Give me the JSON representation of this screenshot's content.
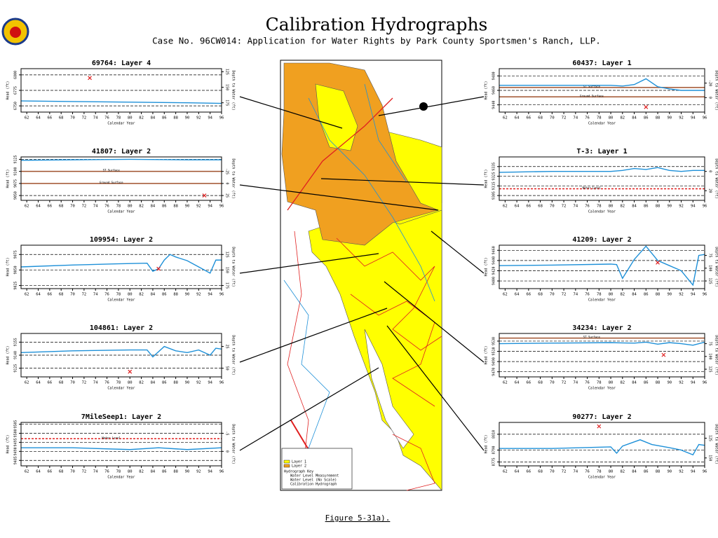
{
  "header": {
    "title": "Calibration Hydrographs",
    "subtitle": "Case No. 96CW014: Application for Water Rights by Park County Sportsmen's Ranch, LLP."
  },
  "footer": "Figure 5-31a).",
  "map": {
    "legend": [
      "Layer 1",
      "Layer 2",
      "Hydrograph Key",
      "Water Level Measurement",
      "Water Level (No Scale)",
      "Calibration Hydrograph"
    ]
  },
  "chart_data": [
    {
      "type": "line",
      "title": "69764: Layer 4",
      "x_label": "Calendar Year",
      "y_label": "Head (ft)",
      "y2_label": "Depth to Water (ft)",
      "xlim": [
        61,
        96
      ],
      "xticks": [
        62,
        64,
        66,
        68,
        70,
        72,
        74,
        76,
        78,
        80,
        82,
        84,
        86,
        88,
        90,
        92,
        94,
        96
      ],
      "ylim": [
        6740,
        6810
      ],
      "yticks": [
        6750,
        6775,
        6800
      ],
      "y2lim": [
        190,
        120
      ],
      "y2ticks": [
        125,
        150,
        175
      ],
      "grid": true,
      "series": [
        {
          "color": "#1e90d8",
          "x": [
            61,
            70,
            80,
            90,
            96
          ],
          "values": [
            6758,
            6757,
            6756,
            6755,
            6754
          ]
        }
      ],
      "measurements": {
        "color": "#e02020",
        "x": [
          73
        ],
        "y": [
          6795
        ]
      },
      "ref_lines": []
    },
    {
      "type": "line",
      "title": "41807: Layer 2",
      "x_label": "Calendar Year",
      "y_label": "Head (ft)",
      "y2_label": "Depth to Water (ft)",
      "xlim": [
        61,
        96
      ],
      "xticks": [
        62,
        64,
        66,
        68,
        70,
        72,
        74,
        76,
        78,
        80,
        82,
        84,
        86,
        88,
        90,
        92,
        94,
        96
      ],
      "ylim": [
        9040,
        9130
      ],
      "yticks": [
        9050,
        9075,
        9100,
        9125
      ],
      "y2lim": [
        35,
        -55
      ],
      "y2ticks": [
        -25,
        0,
        25
      ],
      "grid": true,
      "series": [
        {
          "color": "#1e90d8",
          "x": [
            61,
            70,
            80,
            90,
            96
          ],
          "values": [
            9123,
            9124,
            9125,
            9124,
            9124
          ]
        }
      ],
      "measurements": {
        "color": "#e02020",
        "x": [
          93
        ],
        "y": [
          9050
        ]
      },
      "ref_lines": [
        {
          "label": "ST Surface",
          "value": 9100,
          "color": "#a0522d"
        },
        {
          "label": "Ground Surface",
          "value": 9075,
          "color": "#a0522d"
        }
      ]
    },
    {
      "type": "line",
      "title": "109954: Layer 2",
      "x_label": "Calendar Year",
      "y_label": "Head (ft)",
      "y2_label": "Depth to Water (ft)",
      "xlim": [
        61,
        96
      ],
      "xticks": [
        62,
        64,
        66,
        68,
        70,
        72,
        74,
        76,
        78,
        80,
        82,
        84,
        86,
        88,
        90,
        92,
        94,
        96
      ],
      "ylim": [
        9020,
        9090
      ],
      "yticks": [
        9025,
        9050,
        9075
      ],
      "y2lim": [
        180,
        110
      ],
      "y2ticks": [
        125,
        150,
        175
      ],
      "grid": true,
      "series": [
        {
          "color": "#1e90d8",
          "x": [
            61,
            70,
            78,
            83,
            84,
            85,
            86,
            87,
            88,
            90,
            92,
            94,
            95,
            96
          ],
          "values": [
            9055,
            9058,
            9060,
            9061,
            9048,
            9052,
            9066,
            9075,
            9071,
            9065,
            9055,
            9045,
            9066,
            9066
          ]
        }
      ],
      "measurements": {
        "color": "#e02020",
        "x": [
          85
        ],
        "y": [
          9052
        ]
      },
      "ref_lines": []
    },
    {
      "type": "line",
      "title": "104861: Layer 2",
      "x_label": "Calendar Year",
      "y_label": "Head (ft)",
      "y2_label": "Depth to Water (ft)",
      "xlim": [
        61,
        96
      ],
      "xticks": [
        62,
        64,
        66,
        68,
        70,
        72,
        74,
        76,
        78,
        80,
        82,
        84,
        86,
        88,
        90,
        92,
        94,
        96
      ],
      "ylim": [
        9115,
        9165
      ],
      "yticks": [
        9125,
        9140,
        9155
      ],
      "y2lim": [
        60,
        10
      ],
      "y2ticks": [
        25,
        50
      ],
      "grid": true,
      "series": [
        {
          "color": "#1e90d8",
          "x": [
            61,
            70,
            80,
            83,
            84,
            86,
            88,
            90,
            92,
            94,
            95,
            96
          ],
          "values": [
            9143,
            9145,
            9146,
            9146,
            9138,
            9150,
            9145,
            9143,
            9146,
            9140,
            9148,
            9147
          ]
        }
      ],
      "measurements": {
        "color": "#e02020",
        "x": [
          80
        ],
        "y": [
          9121
        ]
      },
      "ref_lines": []
    },
    {
      "type": "line",
      "title": "7MileSeep1: Layer 2",
      "x_label": "Calendar Year",
      "y_label": "Head (ft)",
      "y2_label": "Depth to Water (ft)",
      "xlim": [
        61,
        96
      ],
      "xticks": [
        62,
        64,
        66,
        68,
        70,
        72,
        74,
        76,
        78,
        80,
        82,
        84,
        86,
        88,
        90,
        92,
        94,
        96
      ],
      "ylim": [
        9482,
        9506
      ],
      "yticks": [
        9485,
        9490,
        9495,
        9500,
        9505
      ],
      "y2lim": [
        4,
        -8
      ],
      "y2ticks": [
        -5,
        0
      ],
      "grid": true,
      "series": [
        {
          "color": "#1e90d8",
          "x": [
            61,
            70,
            80,
            85,
            90,
            96
          ],
          "values": [
            9492,
            9492,
            9491,
            9492,
            9491,
            9492
          ]
        }
      ],
      "measurements": {
        "color": "#e02020",
        "x": [],
        "y": []
      },
      "ref_lines": [
        {
          "label": "Water Level",
          "value": 9497,
          "color": "#e02020"
        }
      ]
    },
    {
      "type": "line",
      "title": "60437: Layer 1",
      "x_label": "Calendar Year",
      "y_label": "Head (ft)",
      "y2_label": "Depth to Water (ft)",
      "xlim": [
        61,
        96
      ],
      "xticks": [
        62,
        64,
        66,
        68,
        70,
        72,
        74,
        76,
        78,
        80,
        82,
        84,
        86,
        88,
        90,
        92,
        94,
        96
      ],
      "ylim": [
        9430,
        9490
      ],
      "yticks": [
        9440,
        9460,
        9480
      ],
      "y2lim": [
        20,
        -40
      ],
      "y2ticks": [
        -20,
        0
      ],
      "grid": true,
      "series": [
        {
          "color": "#1e90d8",
          "x": [
            61,
            70,
            80,
            82,
            84,
            86,
            88,
            90,
            92,
            96
          ],
          "values": [
            9467,
            9467,
            9467,
            9466,
            9468,
            9476,
            9465,
            9462,
            9460,
            9460
          ]
        }
      ],
      "measurements": {
        "color": "#e02020",
        "x": [
          86
        ],
        "y": [
          9437
        ]
      },
      "ref_lines": [
        {
          "label": "ST Surface",
          "value": 9464,
          "color": "#a0522d"
        },
        {
          "label": "Ground Surface",
          "value": 9451,
          "color": "#a0522d"
        }
      ]
    },
    {
      "type": "line",
      "title": "T-3: Layer 1",
      "x_label": "Calendar Year",
      "y_label": "Head (ft)",
      "y2_label": "Depth to Water (ft)",
      "xlim": [
        61,
        96
      ],
      "xticks": [
        62,
        64,
        66,
        68,
        70,
        72,
        74,
        76,
        78,
        80,
        82,
        84,
        86,
        88,
        90,
        92,
        94,
        96
      ],
      "ylim": [
        9300,
        9345
      ],
      "yticks": [
        9305,
        9315,
        9325,
        9335
      ],
      "y2lim": [
        30,
        -15
      ],
      "y2ticks": [
        0,
        20
      ],
      "grid": true,
      "series": [
        {
          "color": "#1e90d8",
          "x": [
            61,
            70,
            80,
            82,
            84,
            86,
            88,
            90,
            92,
            94,
            96
          ],
          "values": [
            9329,
            9330,
            9330,
            9331,
            9333,
            9332,
            9334,
            9331,
            9330,
            9331,
            9331
          ]
        }
      ],
      "measurements": {
        "color": "#e02020",
        "x": [],
        "y": []
      },
      "ref_lines": [
        {
          "label": "Water Level",
          "value": 9312,
          "color": "#e02020"
        }
      ]
    },
    {
      "type": "line",
      "title": "41209: Layer 2",
      "x_label": "Calendar Year",
      "y_label": "Head (ft)",
      "y2_label": "Depth to Water (ft)",
      "xlim": [
        61,
        96
      ],
      "xticks": [
        62,
        64,
        66,
        68,
        70,
        72,
        74,
        76,
        78,
        80,
        82,
        84,
        86,
        88,
        90,
        92,
        94,
        96
      ],
      "ylim": [
        9385,
        9470
      ],
      "yticks": [
        9400,
        9420,
        9440,
        9460
      ],
      "y2lim": [
        140,
        55
      ],
      "y2ticks": [
        75,
        100,
        125
      ],
      "grid": true,
      "series": [
        {
          "color": "#1e90d8",
          "x": [
            61,
            70,
            80,
            81,
            82,
            84,
            86,
            88,
            90,
            92,
            94,
            95,
            96
          ],
          "values": [
            9430,
            9431,
            9433,
            9432,
            9405,
            9442,
            9468,
            9440,
            9430,
            9420,
            9392,
            9450,
            9452
          ]
        }
      ],
      "measurements": {
        "color": "#e02020",
        "x": [
          88
        ],
        "y": [
          9436
        ]
      },
      "ref_lines": []
    },
    {
      "type": "line",
      "title": "34234: Layer 2",
      "x_label": "Calendar Year",
      "y_label": "Head (ft)",
      "y2_label": "Depth to Water (ft)",
      "xlim": [
        61,
        96
      ],
      "xticks": [
        62,
        64,
        66,
        68,
        70,
        72,
        74,
        76,
        78,
        80,
        82,
        84,
        86,
        88,
        90,
        92,
        94,
        96
      ],
      "ylim": [
        9460,
        9545
      ],
      "yticks": [
        9470,
        9490,
        9510,
        9530
      ],
      "y2lim": [
        140,
        55
      ],
      "y2ticks": [
        75,
        100,
        125
      ],
      "grid": true,
      "series": [
        {
          "color": "#1e90d8",
          "x": [
            61,
            70,
            80,
            84,
            86,
            88,
            90,
            92,
            94,
            96
          ],
          "values": [
            9525,
            9526,
            9527,
            9526,
            9528,
            9524,
            9527,
            9525,
            9522,
            9528
          ]
        }
      ],
      "measurements": {
        "color": "#e02020",
        "x": [
          89
        ],
        "y": [
          9503
        ]
      },
      "ref_lines": [
        {
          "label": "ST Surface",
          "value": 9536,
          "color": "#a0522d"
        }
      ]
    },
    {
      "type": "line",
      "title": "90277: Layer 2",
      "x_label": "Calendar Year",
      "y_label": "Head (ft)",
      "y2_label": "Depth to Water (ft)",
      "xlim": [
        61,
        96
      ],
      "xticks": [
        62,
        64,
        66,
        68,
        70,
        72,
        74,
        76,
        78,
        80,
        82,
        84,
        86,
        88,
        90,
        92,
        94,
        96
      ],
      "ylim": [
        8770,
        8825
      ],
      "yticks": [
        8775,
        8790,
        8810
      ],
      "y2lim": [
        160,
        105
      ],
      "y2ticks": [
        125,
        150
      ],
      "grid": true,
      "series": [
        {
          "color": "#1e90d8",
          "x": [
            61,
            70,
            80,
            81,
            82,
            85,
            87,
            90,
            92,
            94,
            95,
            96
          ],
          "values": [
            8792,
            8792,
            8794,
            8786,
            8795,
            8803,
            8797,
            8793,
            8790,
            8784,
            8797,
            8796
          ]
        }
      ],
      "measurements": {
        "color": "#e02020",
        "x": [
          78
        ],
        "y": [
          8820
        ]
      },
      "ref_lines": []
    }
  ]
}
